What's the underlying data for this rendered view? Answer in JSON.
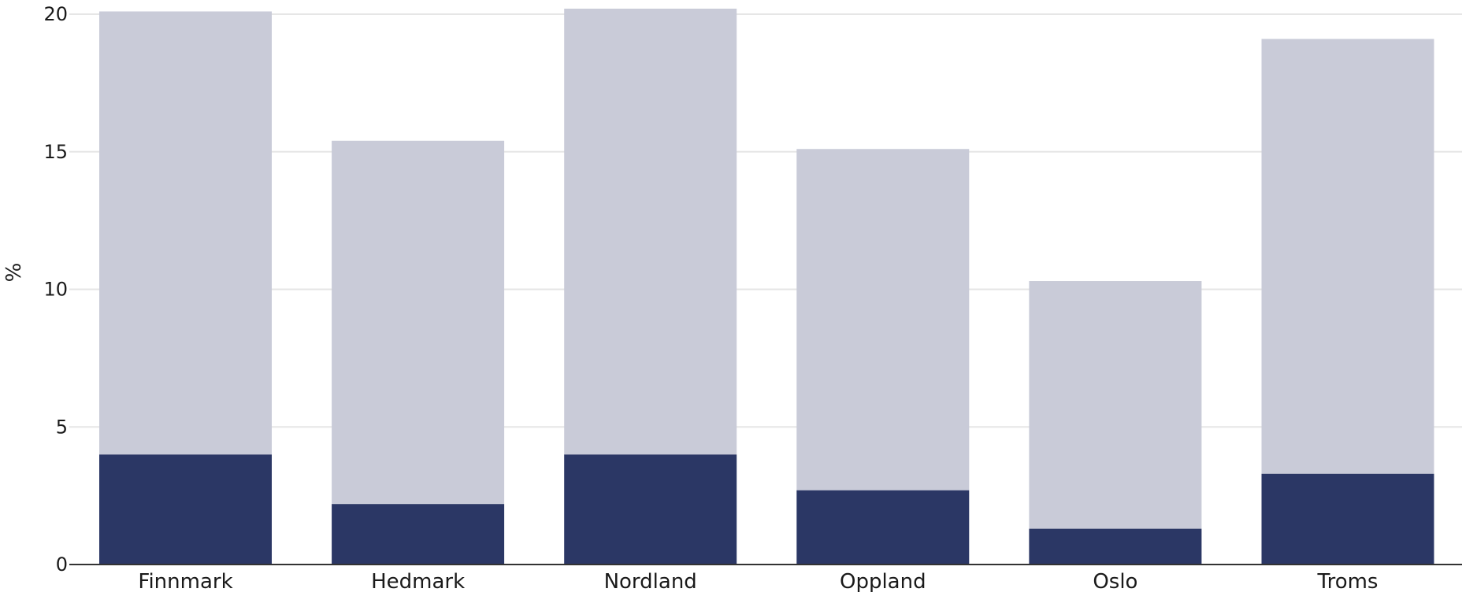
{
  "chart_data": {
    "type": "bar",
    "stacked": true,
    "categories": [
      "Finnmark",
      "Hedmark",
      "Nordland",
      "Oppland",
      "Oslo",
      "Troms"
    ],
    "series": [
      {
        "values": [
          4.0,
          2.2,
          4.0,
          2.7,
          1.3,
          3.3
        ],
        "color": "#2b3765"
      },
      {
        "values": [
          16.1,
          13.2,
          16.2,
          12.4,
          9.0,
          15.8
        ],
        "color": "#c9cbd8"
      }
    ],
    "totals": [
      20.1,
      15.4,
      20.2,
      15.1,
      10.3,
      19.1
    ],
    "ylabel": "%",
    "ylim": [
      0,
      20
    ],
    "yticks": [
      "0",
      "5",
      "10",
      "15",
      "20"
    ],
    "ytick_values": [
      0,
      5,
      10,
      15,
      20
    ],
    "grid": true,
    "legend": "none"
  }
}
